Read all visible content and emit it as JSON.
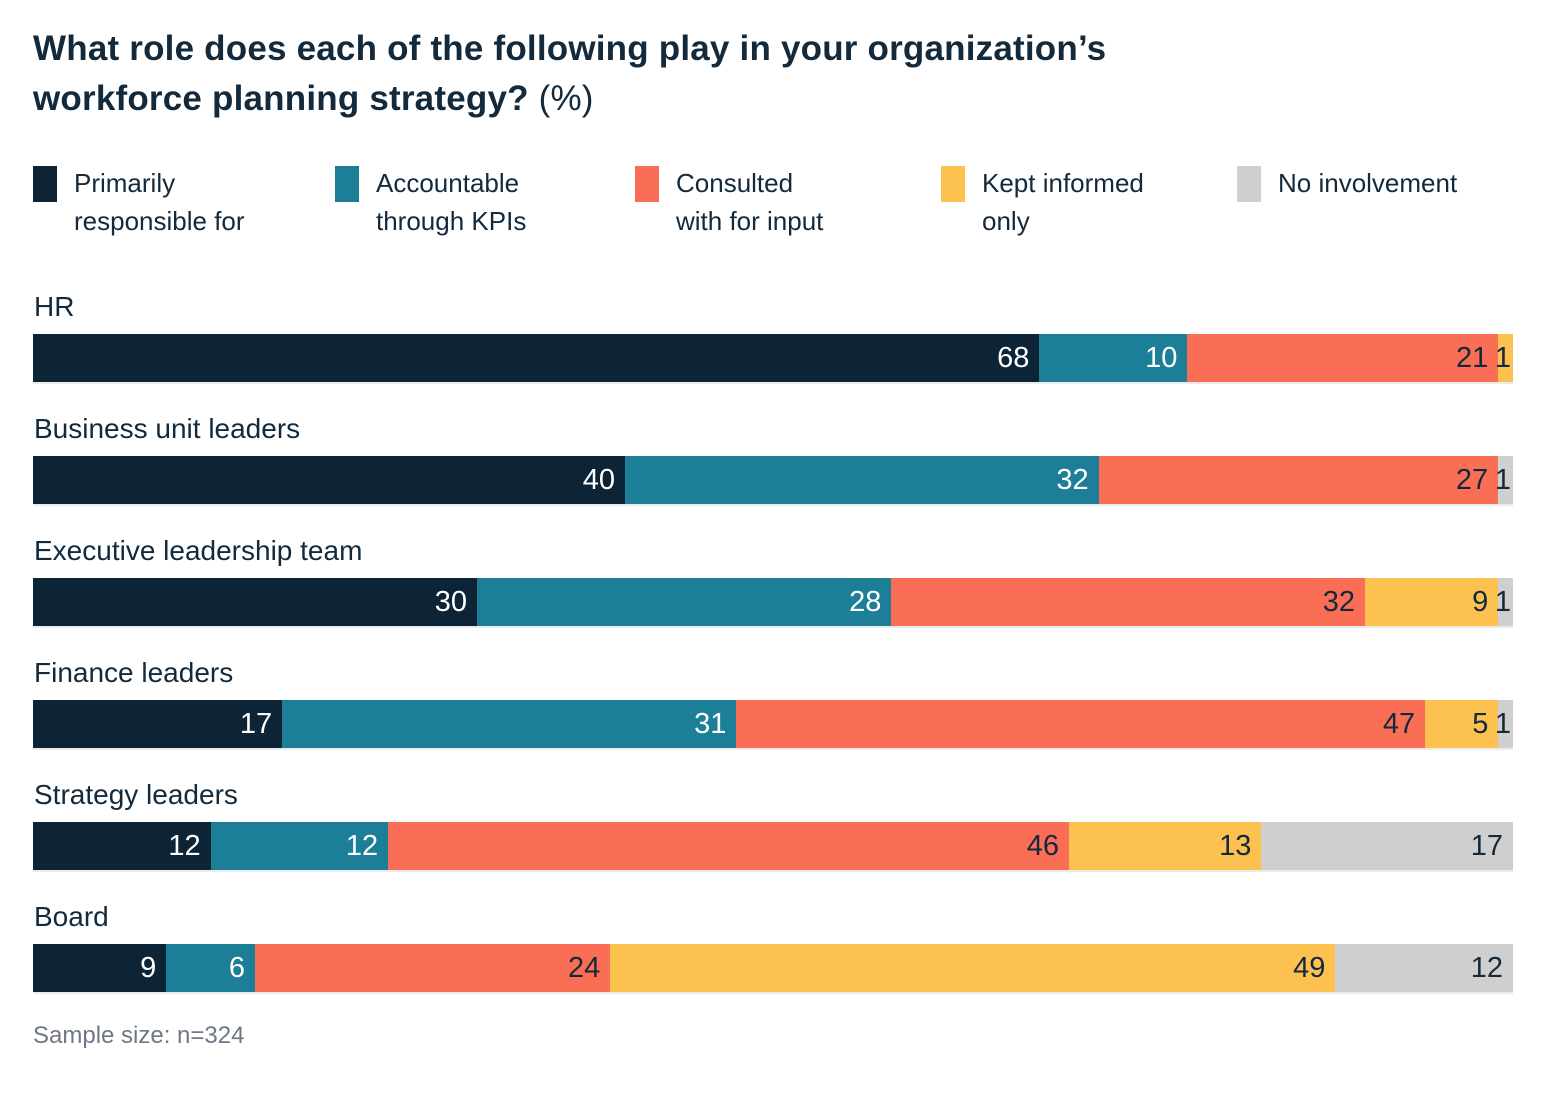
{
  "title": {
    "line1": "What role does each of the following play in your organization’s",
    "line2": "workforce planning strategy?",
    "suffix": "(%)"
  },
  "legend": [
    {
      "lines": [
        "Primarily",
        "responsible for"
      ]
    },
    {
      "lines": [
        "Accountable",
        "through KPIs"
      ]
    },
    {
      "lines": [
        "Consulted",
        "with for input"
      ]
    },
    {
      "lines": [
        "Kept informed",
        "only"
      ]
    },
    {
      "lines": [
        "No involvement"
      ]
    }
  ],
  "footnote": "Sample size: n=324",
  "colors": {
    "navy": "#0d2437",
    "teal": "#1d7f97",
    "coral": "#fa6e55",
    "yellow": "#fcc14e",
    "gray": "#cfcfcf",
    "text_dark": "#13293c",
    "text_light": "#ffffff",
    "footnote_gray": "#6f7787"
  },
  "chart_data": {
    "type": "bar",
    "orientation": "horizontal-stacked",
    "unit": "%",
    "title": "What role does each of the following play in your organization’s workforce planning strategy? (%)",
    "sample_size": "n=324",
    "legend_position": "top",
    "xlim": [
      0,
      100
    ],
    "grid": false,
    "categories": [
      "HR",
      "Business unit leaders",
      "Executive leadership team",
      "Finance leaders",
      "Strategy leaders",
      "Board"
    ],
    "series": [
      {
        "name": "Primarily responsible for",
        "color": "#0d2437",
        "label_color": "#ffffff",
        "values": [
          68,
          40,
          30,
          17,
          12,
          9
        ]
      },
      {
        "name": "Accountable through KPIs",
        "color": "#1d7f97",
        "label_color": "#ffffff",
        "values": [
          10,
          32,
          28,
          31,
          12,
          6
        ]
      },
      {
        "name": "Consulted with for input",
        "color": "#fa6e55",
        "label_color": "#13293c",
        "values": [
          21,
          27,
          32,
          47,
          46,
          24
        ]
      },
      {
        "name": "Kept informed only",
        "color": "#fcc14e",
        "label_color": "#13293c",
        "values": [
          1,
          0,
          9,
          5,
          13,
          49
        ]
      },
      {
        "name": "No involvement",
        "color": "#cfcfcf",
        "label_color": "#13293c",
        "values": [
          0,
          1,
          1,
          1,
          17,
          12
        ]
      }
    ]
  }
}
